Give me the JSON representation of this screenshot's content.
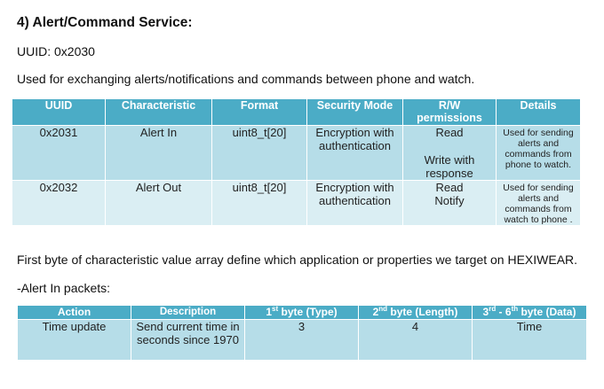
{
  "heading": "4) Alert/Command Service:",
  "uuid_line": "UUID: 0x2030",
  "description": "Used for exchanging alerts/notifications and commands between phone and watch.",
  "table1": {
    "headers": [
      "UUID",
      "Characteristic",
      "Format",
      "Security Mode",
      "R/W permissions",
      "Details"
    ],
    "rows": [
      {
        "uuid": "0x2031",
        "characteristic": "Alert In",
        "format": "uint8_t[20]",
        "security": "Encryption with authentication",
        "rw_line1": "Read",
        "rw_line2": "Write with response",
        "details": "Used for sending alerts and commands from phone to watch."
      },
      {
        "uuid": "0x2032",
        "characteristic": "Alert Out",
        "format": "uint8_t[20]",
        "security": "Encryption with authentication",
        "rw_line1": "Read",
        "rw_line2": "Notify",
        "details": "Used for sending alerts and commands from watch to phone ."
      }
    ]
  },
  "first_byte_note": "First byte of characteristic value array define which application or properties we target on HEXIWEAR.",
  "alert_in_label": "-Alert In packets:",
  "table2": {
    "headers": {
      "action": "Action",
      "description": "Description",
      "byte1_num": "1",
      "byte1_sup": "st",
      "byte1_text": " byte (Type)",
      "byte2_num": "2",
      "byte2_sup": "nd",
      "byte2_text": " byte (Length)",
      "byte3_num": "3",
      "byte3_sup": "rd",
      "byte3_text": " - 6",
      "byte3_sup2": "th",
      "byte3_text2": " byte (Data)"
    },
    "row": {
      "action": "Time update",
      "description": "Send current time in seconds since 1970",
      "type": "3",
      "length": "4",
      "data": "Time"
    }
  }
}
